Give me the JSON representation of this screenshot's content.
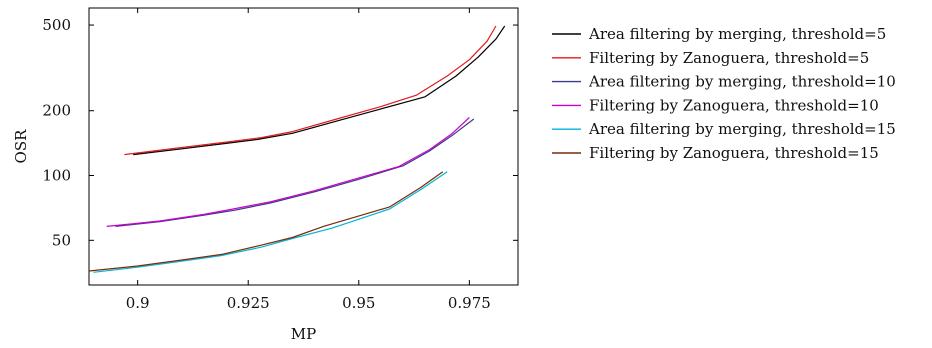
{
  "chart_data": {
    "type": "line",
    "title": "",
    "xlabel": "MP",
    "ylabel": "OSR",
    "xscale": "linear",
    "yscale": "log",
    "xlim": [
      0.889,
      0.986
    ],
    "ylim": [
      31,
      600
    ],
    "xticks": [
      0.9,
      0.925,
      0.95,
      0.975
    ],
    "xtick_labels": [
      "0.9",
      "0.925",
      "0.95",
      "0.975"
    ],
    "yticks": [
      50,
      100,
      200,
      500
    ],
    "ytick_labels": [
      "50",
      "100",
      "200",
      "500"
    ],
    "grid": false,
    "legend_position": "outside-right",
    "series": [
      {
        "name": "Area filtering by merging, threshold=5",
        "color": "#000000",
        "points": [
          [
            0.899,
            125
          ],
          [
            0.91,
            133
          ],
          [
            0.92,
            141
          ],
          [
            0.927,
            147
          ],
          [
            0.935,
            157
          ],
          [
            0.945,
            179
          ],
          [
            0.955,
            204
          ],
          [
            0.965,
            232
          ],
          [
            0.972,
            290
          ],
          [
            0.977,
            355
          ],
          [
            0.981,
            430
          ],
          [
            0.983,
            495
          ]
        ]
      },
      {
        "name": "Filtering by Zanoguera, threshold=5",
        "color": "#e41a1c",
        "points": [
          [
            0.897,
            125
          ],
          [
            0.91,
            135
          ],
          [
            0.92,
            143
          ],
          [
            0.928,
            150
          ],
          [
            0.935,
            160
          ],
          [
            0.945,
            183
          ],
          [
            0.955,
            209
          ],
          [
            0.963,
            236
          ],
          [
            0.97,
            290
          ],
          [
            0.975,
            345
          ],
          [
            0.979,
            420
          ],
          [
            0.981,
            495
          ]
        ]
      },
      {
        "name": "Area filtering by merging, threshold=10",
        "color": "#3a3a8c",
        "points": [
          [
            0.895,
            58
          ],
          [
            0.905,
            61
          ],
          [
            0.915,
            65.5
          ],
          [
            0.922,
            69
          ],
          [
            0.93,
            74.5
          ],
          [
            0.94,
            84
          ],
          [
            0.95,
            96
          ],
          [
            0.96,
            111
          ],
          [
            0.966,
            130
          ],
          [
            0.971,
            153
          ],
          [
            0.976,
            183
          ]
        ]
      },
      {
        "name": "Filtering by Zanoguera, threshold=10",
        "color": "#cc00cc",
        "points": [
          [
            0.893,
            58
          ],
          [
            0.905,
            61.5
          ],
          [
            0.915,
            66
          ],
          [
            0.921,
            69.5
          ],
          [
            0.93,
            75.5
          ],
          [
            0.94,
            85
          ],
          [
            0.95,
            97.5
          ],
          [
            0.959,
            110
          ],
          [
            0.966,
            132
          ],
          [
            0.971,
            156
          ],
          [
            0.975,
            186
          ]
        ]
      },
      {
        "name": "Area filtering by merging, threshold=15",
        "color": "#00b5d8",
        "points": [
          [
            0.89,
            35.5
          ],
          [
            0.9,
            37.5
          ],
          [
            0.91,
            40
          ],
          [
            0.919,
            42.5
          ],
          [
            0.928,
            46.5
          ],
          [
            0.935,
            51
          ],
          [
            0.944,
            57
          ],
          [
            0.957,
            70
          ],
          [
            0.964,
            86
          ],
          [
            0.97,
            104
          ]
        ]
      },
      {
        "name": "Filtering by Zanoguera, threshold=15",
        "color": "#7a2a0a",
        "points": [
          [
            0.889,
            36
          ],
          [
            0.9,
            38
          ],
          [
            0.91,
            40.5
          ],
          [
            0.919,
            43
          ],
          [
            0.928,
            47.5
          ],
          [
            0.935,
            51.5
          ],
          [
            0.942,
            58
          ],
          [
            0.957,
            71.5
          ],
          [
            0.964,
            88
          ],
          [
            0.969,
            104
          ]
        ]
      }
    ]
  }
}
